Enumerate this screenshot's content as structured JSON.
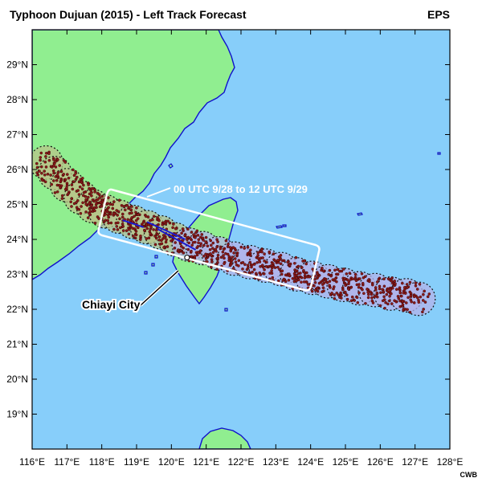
{
  "header": {
    "title": "Typhoon Dujuan (2015) - Left Track Forecast",
    "model": "EPS",
    "credit": "CWB"
  },
  "map": {
    "lon_range": [
      116,
      128
    ],
    "lat_range": [
      18,
      30
    ],
    "lon_ticks": [
      116,
      117,
      118,
      119,
      120,
      121,
      122,
      123,
      124,
      125,
      126,
      127,
      128
    ],
    "lon_labels": [
      "116°E",
      "117°E",
      "118°E",
      "119°E",
      "120°E",
      "121°E",
      "122°E",
      "123°E",
      "124°E",
      "125°E",
      "126°E",
      "127°E",
      "128°E"
    ],
    "lat_ticks": [
      19,
      20,
      21,
      22,
      23,
      24,
      25,
      26,
      27,
      28,
      29
    ],
    "lat_labels": [
      "19°N",
      "20°N",
      "21°N",
      "22°N",
      "23°N",
      "24°N",
      "25°N",
      "26°N",
      "27°N",
      "28°N",
      "29°N"
    ],
    "land_color": "#90ee90",
    "sea_color": "#87cefa",
    "coast_color": "#1010cc"
  },
  "annotations": {
    "window_label": "00 UTC 9/28 to 12 UTC 9/29",
    "city_label": "Chiayi City",
    "city_lon": 120.45,
    "city_lat": 23.48
  },
  "track_forecast": {
    "circle_centers": [
      [
        116.4,
        26.2
      ],
      [
        116.65,
        25.9
      ],
      [
        117.0,
        25.55
      ],
      [
        117.4,
        25.2
      ],
      [
        117.75,
        24.95
      ],
      [
        118.1,
        24.8
      ],
      [
        118.5,
        24.65
      ],
      [
        118.9,
        24.5
      ],
      [
        119.3,
        24.35
      ],
      [
        119.7,
        24.2
      ],
      [
        120.1,
        24.0
      ],
      [
        120.5,
        23.85
      ],
      [
        120.9,
        23.75
      ],
      [
        121.35,
        23.6
      ],
      [
        121.8,
        23.45
      ],
      [
        122.25,
        23.35
      ],
      [
        122.7,
        23.25
      ],
      [
        123.15,
        23.15
      ],
      [
        123.6,
        23.0
      ],
      [
        124.05,
        22.9
      ],
      [
        124.5,
        22.8
      ],
      [
        124.95,
        22.7
      ],
      [
        125.4,
        22.6
      ],
      [
        125.85,
        22.55
      ],
      [
        126.3,
        22.45
      ],
      [
        126.75,
        22.4
      ],
      [
        127.1,
        22.3
      ]
    ],
    "circle_radius_deg": 0.48,
    "shaded_colors": [
      "#b8c48a",
      "#b3b3ea"
    ]
  }
}
